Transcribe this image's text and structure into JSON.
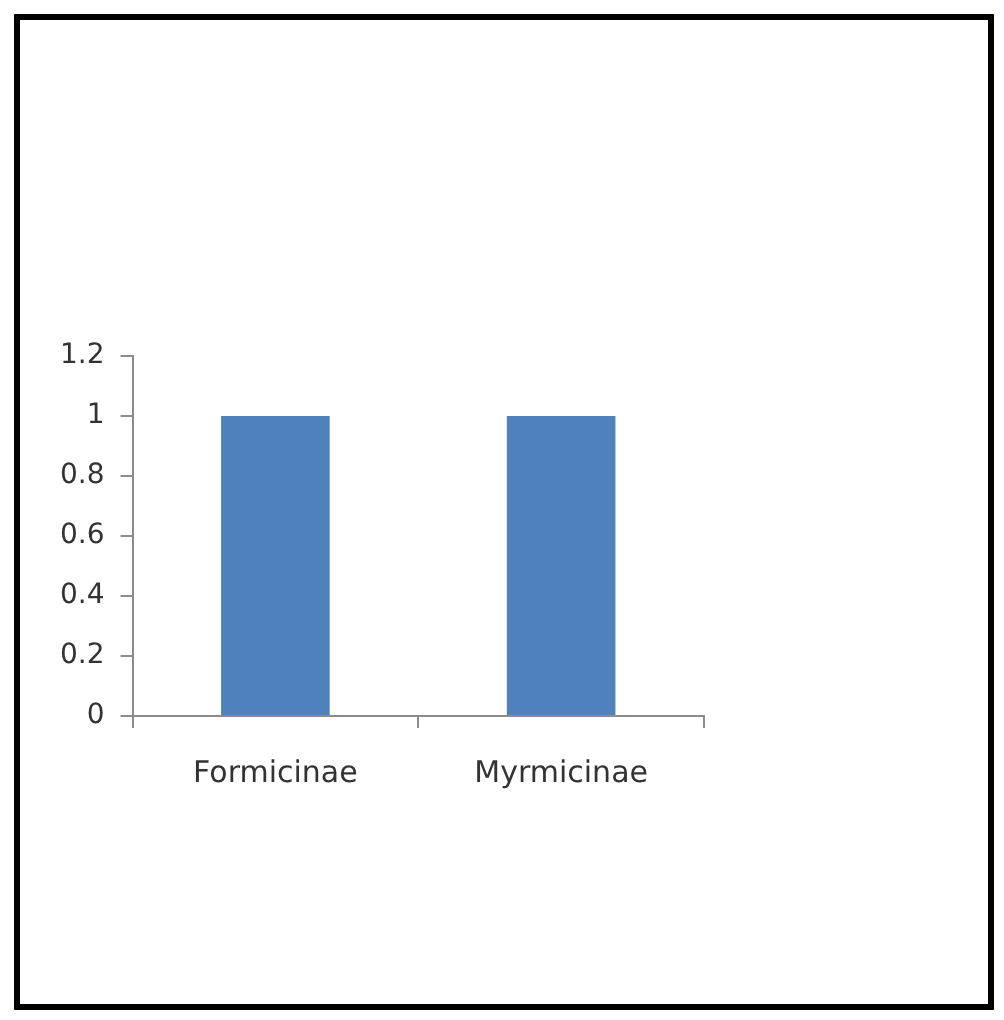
{
  "chart_data": {
    "type": "bar",
    "categories": [
      "Formicinae",
      "Myrmicinae"
    ],
    "values": [
      1,
      1
    ],
    "color": "#4f81bd",
    "ylim": [
      0,
      1.2
    ],
    "yticks": [
      0,
      0.2,
      0.4,
      0.6,
      0.8,
      1,
      1.2
    ],
    "grid": false,
    "legend": false
  }
}
